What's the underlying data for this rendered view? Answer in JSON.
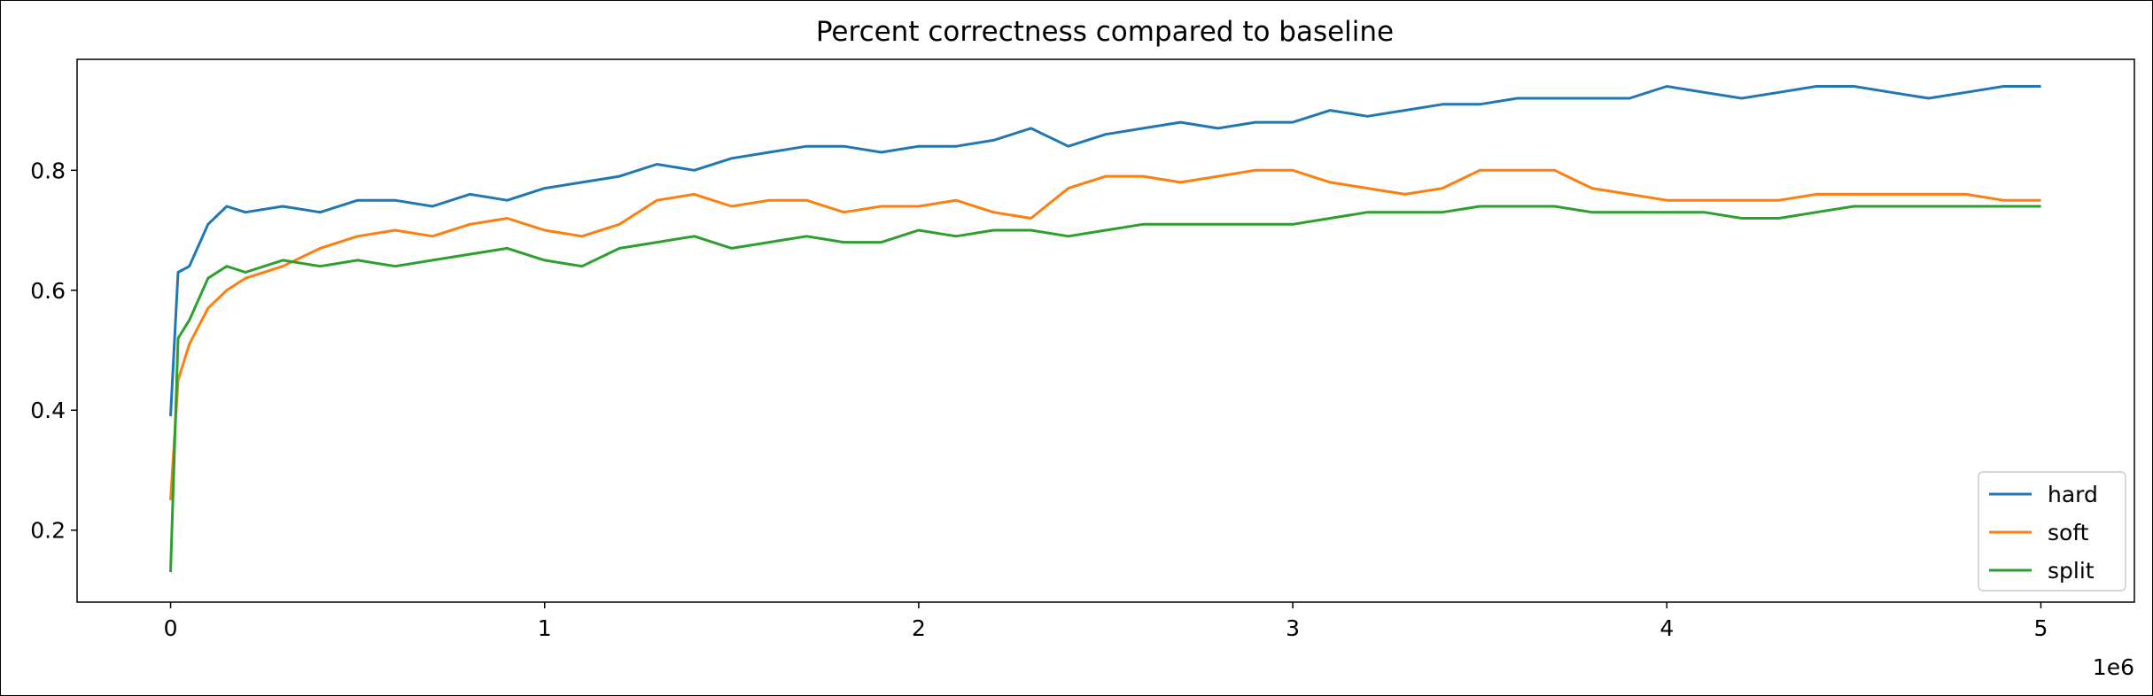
{
  "chart_data": {
    "type": "line",
    "title": "Percent correctness compared to baseline",
    "xlabel": "",
    "ylabel": "",
    "x_offset_label": "1e6",
    "xlim": [
      -0.25,
      5.25
    ],
    "ylim": [
      0.08,
      0.985
    ],
    "x_ticks": [
      0,
      1,
      2,
      3,
      4,
      5
    ],
    "x_tick_labels": [
      "0",
      "1",
      "2",
      "3",
      "4",
      "5"
    ],
    "y_ticks": [
      0.2,
      0.4,
      0.6,
      0.8
    ],
    "y_tick_labels": [
      "0.2",
      "0.4",
      "0.6",
      "0.8"
    ],
    "grid": false,
    "legend_position": "lower-right",
    "x_units": "1e6 steps",
    "x": [
      0,
      0.02,
      0.05,
      0.1,
      0.15,
      0.2,
      0.3,
      0.4,
      0.5,
      0.6,
      0.7,
      0.8,
      0.9,
      1.0,
      1.1,
      1.2,
      1.3,
      1.4,
      1.5,
      1.6,
      1.7,
      1.8,
      1.9,
      2.0,
      2.1,
      2.2,
      2.3,
      2.4,
      2.5,
      2.6,
      2.7,
      2.8,
      2.9,
      3.0,
      3.1,
      3.2,
      3.3,
      3.4,
      3.5,
      3.6,
      3.7,
      3.8,
      3.9,
      4.0,
      4.1,
      4.2,
      4.3,
      4.4,
      4.5,
      4.6,
      4.7,
      4.8,
      4.9,
      5.0
    ],
    "series": [
      {
        "name": "hard",
        "color": "#1f77b4",
        "values": [
          0.39,
          0.63,
          0.64,
          0.71,
          0.74,
          0.73,
          0.74,
          0.73,
          0.75,
          0.75,
          0.74,
          0.76,
          0.75,
          0.77,
          0.78,
          0.79,
          0.81,
          0.8,
          0.82,
          0.83,
          0.84,
          0.84,
          0.83,
          0.84,
          0.84,
          0.85,
          0.87,
          0.84,
          0.86,
          0.87,
          0.88,
          0.87,
          0.88,
          0.88,
          0.9,
          0.89,
          0.9,
          0.91,
          0.91,
          0.92,
          0.92,
          0.92,
          0.92,
          0.94,
          0.93,
          0.92,
          0.93,
          0.94,
          0.94,
          0.93,
          0.92,
          0.93,
          0.94,
          0.94
        ]
      },
      {
        "name": "soft",
        "color": "#ff7f0e",
        "values": [
          0.25,
          0.45,
          0.51,
          0.57,
          0.6,
          0.62,
          0.64,
          0.67,
          0.69,
          0.7,
          0.69,
          0.71,
          0.72,
          0.7,
          0.69,
          0.71,
          0.75,
          0.76,
          0.74,
          0.75,
          0.75,
          0.73,
          0.74,
          0.74,
          0.75,
          0.73,
          0.72,
          0.77,
          0.79,
          0.79,
          0.78,
          0.79,
          0.8,
          0.8,
          0.78,
          0.77,
          0.76,
          0.77,
          0.8,
          0.8,
          0.8,
          0.77,
          0.76,
          0.75,
          0.75,
          0.75,
          0.75,
          0.76,
          0.76,
          0.76,
          0.76,
          0.76,
          0.75,
          0.75
        ]
      },
      {
        "name": "split",
        "color": "#2ca02c",
        "values": [
          0.13,
          0.52,
          0.55,
          0.62,
          0.64,
          0.63,
          0.65,
          0.64,
          0.65,
          0.64,
          0.65,
          0.66,
          0.67,
          0.65,
          0.64,
          0.67,
          0.68,
          0.69,
          0.67,
          0.68,
          0.69,
          0.68,
          0.68,
          0.7,
          0.69,
          0.7,
          0.7,
          0.69,
          0.7,
          0.71,
          0.71,
          0.71,
          0.71,
          0.71,
          0.72,
          0.73,
          0.73,
          0.73,
          0.74,
          0.74,
          0.74,
          0.73,
          0.73,
          0.73,
          0.73,
          0.72,
          0.72,
          0.73,
          0.74,
          0.74,
          0.74,
          0.74,
          0.74,
          0.74
        ]
      }
    ]
  }
}
